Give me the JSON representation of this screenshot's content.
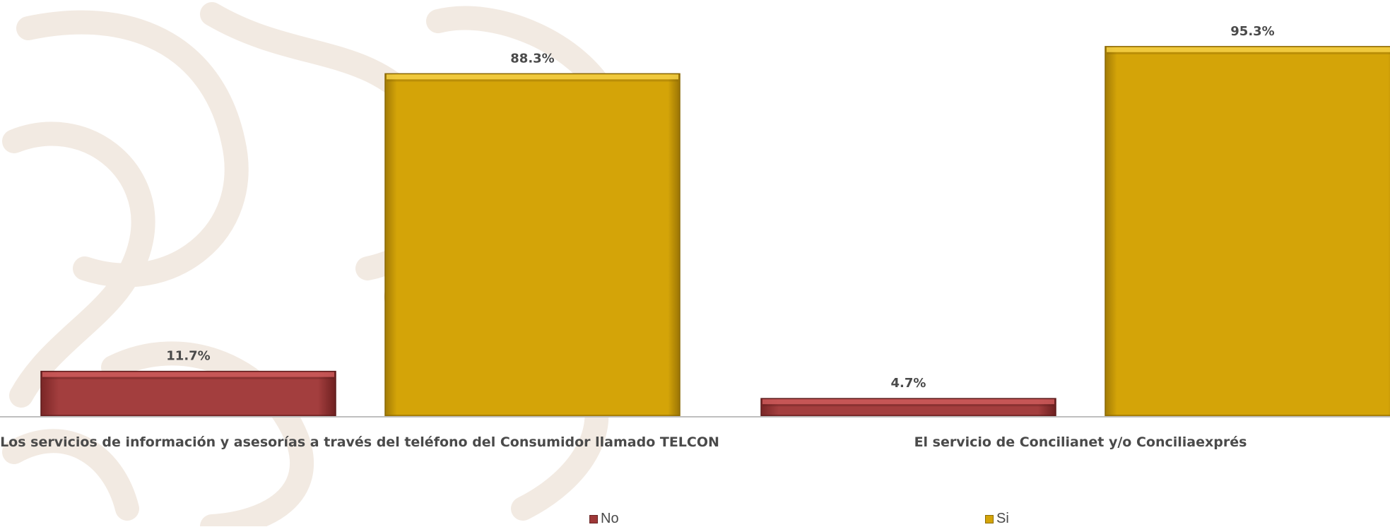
{
  "colors": {
    "no": "#9e3838",
    "no_light": "#cc5a5a",
    "no_dark": "#5e1c1c",
    "si": "#d4a408",
    "si_light": "#f5d046",
    "si_dark": "#8a6805",
    "axis": "#bfbfbf",
    "label_text": "#4a4a4a",
    "watermark": "#f0e7dd"
  },
  "chart_data": {
    "type": "bar",
    "title": "",
    "xlabel": "",
    "ylabel": "",
    "ylim": [
      0,
      100
    ],
    "grid": false,
    "legend_position": "bottom",
    "categories": [
      "Los servicios de información y asesorías a través del teléfono del Consumidor llamado TELCON",
      "El servicio de Concilianet y/o Conciliaexprés"
    ],
    "series": [
      {
        "name": "No",
        "values": [
          11.7,
          4.7
        ],
        "labels": [
          "11.7%",
          "4.7%"
        ]
      },
      {
        "name": "Si",
        "values": [
          88.3,
          95.3
        ],
        "labels": [
          "88.3%",
          "95.3%"
        ]
      }
    ]
  }
}
